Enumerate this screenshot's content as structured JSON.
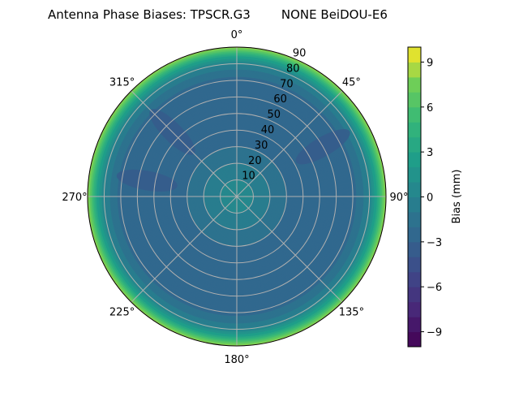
{
  "chart_data": {
    "type": "polar-contour",
    "title": "Antenna Phase Biases: TPSCR.G3        NONE BeiDOU-E6",
    "theta_ticks": [
      "0°",
      "45°",
      "90°",
      "135°",
      "180°",
      "225°",
      "270°",
      "315°"
    ],
    "theta_direction": "clockwise",
    "theta_zero": "top",
    "r_ticks": [
      "10",
      "20",
      "30",
      "40",
      "50",
      "60",
      "70",
      "80",
      "90"
    ],
    "rlim": [
      0,
      90
    ],
    "grid": true,
    "colormap": "viridis",
    "colorbar": {
      "label": "Bias (mm)",
      "range": [
        -10,
        10
      ],
      "levels_step": 1,
      "ticks": [
        "−9",
        "−6",
        "−3",
        "0",
        "3",
        "6",
        "9"
      ],
      "tick_values": [
        -9,
        -6,
        -3,
        0,
        3,
        6,
        9
      ]
    },
    "radial_profile": {
      "zenith_deg": [
        0,
        10,
        20,
        30,
        40,
        50,
        60,
        70,
        75,
        80,
        85,
        88,
        90
      ],
      "bias_mm": [
        0.5,
        0,
        -1,
        -2,
        -2.5,
        -3,
        -3,
        -2.5,
        -1.5,
        0,
        3,
        6,
        8
      ]
    },
    "local_minima": [
      {
        "azimuth_deg": 60,
        "zenith_deg": 60,
        "bias_mm": -4
      },
      {
        "azimuth_deg": 280,
        "zenith_deg": 55,
        "bias_mm": -4
      },
      {
        "azimuth_deg": 315,
        "zenith_deg": 55,
        "bias_mm": -4
      }
    ]
  }
}
